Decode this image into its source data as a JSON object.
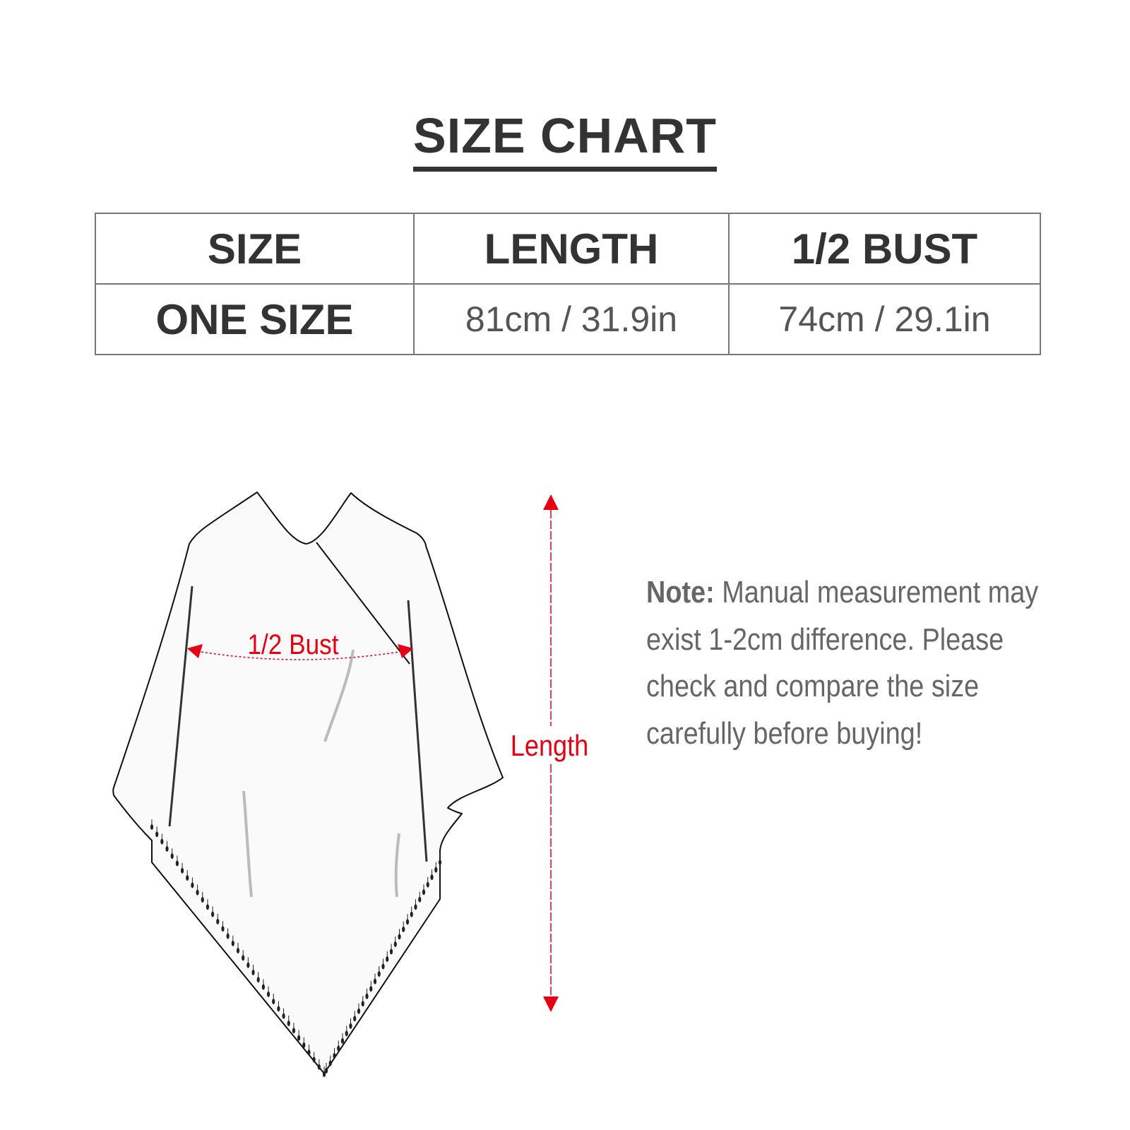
{
  "title": "SIZE CHART",
  "table": {
    "headers": [
      "SIZE",
      "LENGTH",
      "1/2 BUST"
    ],
    "rows": [
      [
        "ONE SIZE",
        "81cm / 31.9in",
        "74cm / 29.1in"
      ]
    ]
  },
  "diagram": {
    "bust_label": "1/2 Bust",
    "length_label": "Length",
    "accent_color": "#e60012"
  },
  "note": {
    "label": "Note:",
    "lines": [
      "Manual measurement may",
      "exist 1-2cm difference. Please",
      "check and compare the size",
      "carefully before buying!"
    ]
  }
}
